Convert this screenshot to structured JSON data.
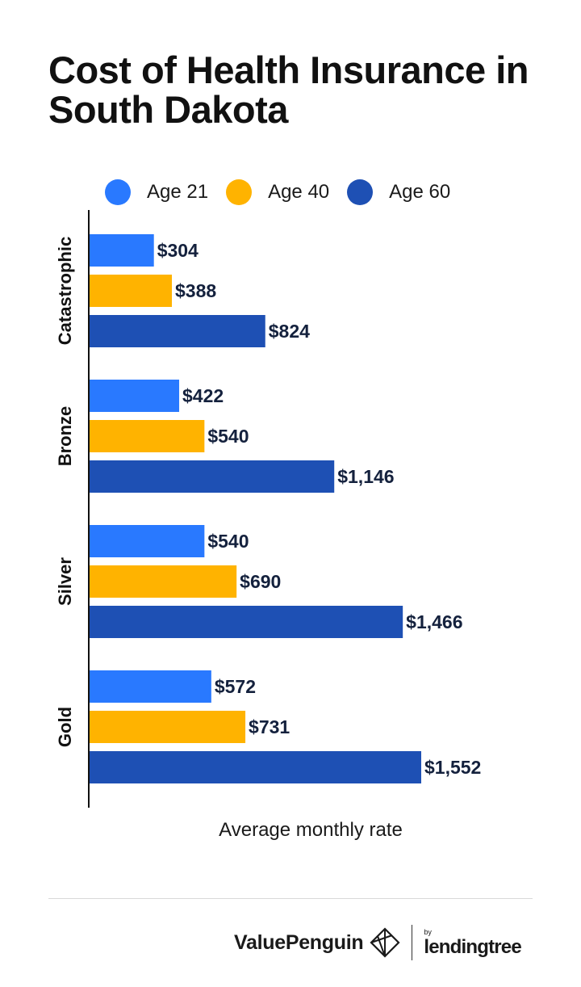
{
  "title": "Cost of Health Insurance in South Dakota",
  "legend": [
    {
      "label": "Age 21",
      "color": "#2979FF"
    },
    {
      "label": "Age 40",
      "color": "#FFB300"
    },
    {
      "label": "Age 60",
      "color": "#1E50B4"
    }
  ],
  "chart_data": {
    "type": "bar",
    "orientation": "horizontal",
    "categories": [
      "Catastrophic",
      "Bronze",
      "Silver",
      "Gold"
    ],
    "series": [
      {
        "name": "Age 21",
        "color": "#2979FF",
        "values": [
          304,
          422,
          540,
          572
        ],
        "labels": [
          "$304",
          "$422",
          "$540",
          "$572"
        ]
      },
      {
        "name": "Age 40",
        "color": "#FFB300",
        "values": [
          388,
          540,
          690,
          731
        ],
        "labels": [
          "$388",
          "$540",
          "$690",
          "$731"
        ]
      },
      {
        "name": "Age 60",
        "color": "#1E50B4",
        "values": [
          824,
          1146,
          1466,
          1552
        ],
        "labels": [
          "$824",
          "$1,146",
          "$1,466",
          "$1,552"
        ]
      }
    ],
    "xlabel": "Average monthly rate",
    "xlim": [
      0,
      1552
    ],
    "grid": false,
    "legend_position": "top"
  },
  "footer": {
    "brand": "ValuePenguin",
    "by": "by",
    "partner": "lendingtree"
  }
}
